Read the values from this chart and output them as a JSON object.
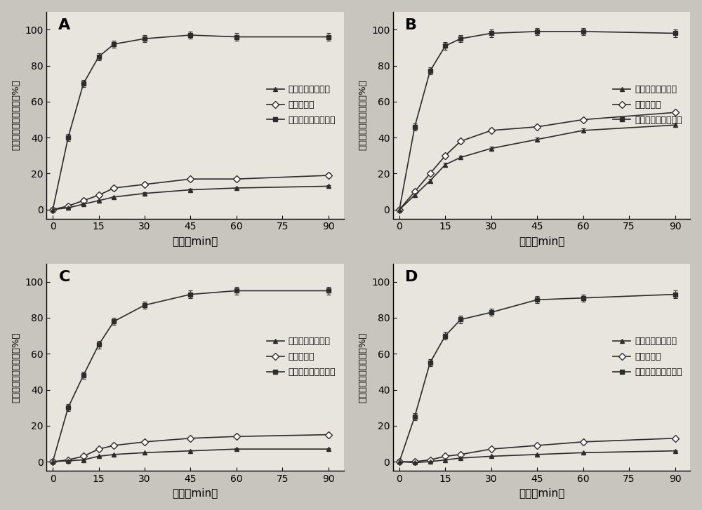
{
  "x_ticks": [
    0,
    15,
    30,
    45,
    60,
    75,
    90
  ],
  "x_data": [
    0,
    5,
    10,
    15,
    20,
    30,
    45,
    60,
    90
  ],
  "panels": [
    {
      "label": "A",
      "nano": [
        0,
        40,
        70,
        85,
        92,
        95,
        97,
        96,
        96
      ],
      "nano_err": [
        0,
        2,
        2,
        2,
        2,
        2,
        2,
        2,
        2
      ],
      "phys": [
        0,
        2,
        5,
        8,
        12,
        14,
        17,
        17,
        19
      ],
      "phys_err": [
        0,
        1,
        1,
        1,
        1,
        1,
        1,
        1,
        1
      ],
      "raw": [
        0,
        1,
        3,
        5,
        7,
        9,
        11,
        12,
        13
      ],
      "raw_err": [
        0,
        0.5,
        0.5,
        0.5,
        0.5,
        0.5,
        0.5,
        0.5,
        0.5
      ]
    },
    {
      "label": "B",
      "nano": [
        0,
        46,
        77,
        91,
        95,
        98,
        99,
        99,
        98
      ],
      "nano_err": [
        0,
        2,
        2,
        2,
        2,
        2,
        2,
        2,
        2
      ],
      "phys": [
        0,
        10,
        20,
        30,
        38,
        44,
        46,
        50,
        54
      ],
      "phys_err": [
        0,
        1,
        1,
        1,
        1,
        1,
        1,
        1,
        1
      ],
      "raw": [
        0,
        8,
        16,
        25,
        29,
        34,
        39,
        44,
        47
      ],
      "raw_err": [
        0,
        1,
        1,
        1,
        1,
        1,
        1,
        1,
        1
      ]
    },
    {
      "label": "C",
      "nano": [
        0,
        30,
        48,
        65,
        78,
        87,
        93,
        95,
        95
      ],
      "nano_err": [
        0,
        2,
        2,
        2,
        2,
        2,
        2,
        2,
        2
      ],
      "phys": [
        0,
        1,
        3,
        7,
        9,
        11,
        13,
        14,
        15
      ],
      "phys_err": [
        0,
        0.5,
        0.5,
        0.5,
        0.5,
        0.5,
        0.5,
        0.5,
        0.5
      ],
      "raw": [
        0,
        0.5,
        1,
        3,
        4,
        5,
        6,
        7,
        7
      ],
      "raw_err": [
        0,
        0.3,
        0.3,
        0.3,
        0.3,
        0.3,
        0.3,
        0.3,
        0.3
      ]
    },
    {
      "label": "D",
      "nano": [
        0,
        25,
        55,
        70,
        79,
        83,
        90,
        91,
        93
      ],
      "nano_err": [
        0,
        2,
        2,
        2,
        2,
        2,
        2,
        2,
        2
      ],
      "phys": [
        0,
        0,
        1,
        3,
        4,
        7,
        9,
        11,
        13
      ],
      "phys_err": [
        0,
        0.3,
        0.3,
        0.3,
        0.3,
        0.3,
        0.3,
        0.3,
        0.3
      ],
      "raw": [
        0,
        -0.5,
        0,
        1,
        2,
        3,
        4,
        5,
        6
      ],
      "raw_err": [
        0,
        0.3,
        0.3,
        0.3,
        0.3,
        0.3,
        0.3,
        0.3,
        0.3
      ]
    }
  ],
  "xlabel": "时间（min）",
  "ylabel": "药物累计释放百分率（%）",
  "legend_labels": [
    "原料药盐酸鲁西酱",
    "物理混合物",
    "盐酸鲁西酱纳米晶体"
  ],
  "color": "#2c2c2c",
  "bg_color": "#e8e4de",
  "fig_bg": "#c8c4be",
  "ylim": [
    -5,
    110
  ],
  "xlim": [
    -2,
    95
  ],
  "yticks": [
    0,
    20,
    40,
    60,
    80,
    100
  ]
}
